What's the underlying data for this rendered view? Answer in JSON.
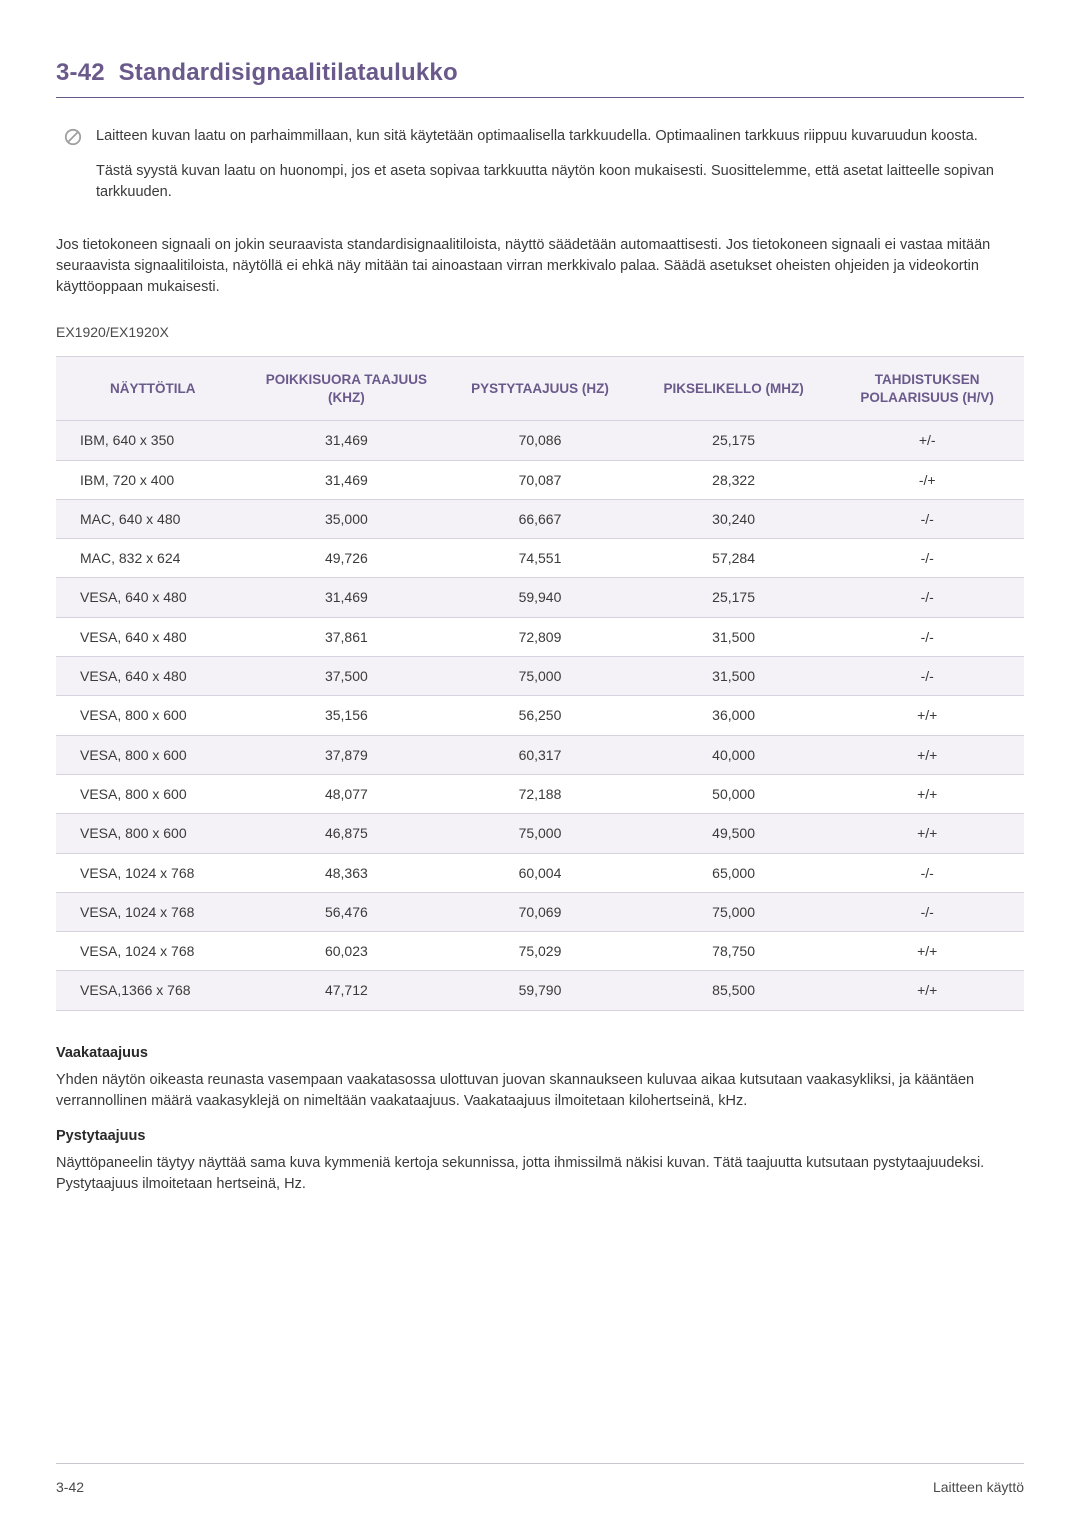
{
  "heading": {
    "section_number": "3-42",
    "title": "Standardisignaalitilataulukko"
  },
  "note_icon": "prohibited-icon",
  "note_paragraphs": [
    "Laitteen kuvan laatu on parhaimmillaan, kun sitä käytetään optimaalisella tarkkuudella. Optimaalinen tarkkuus riippuu kuvaruudun koosta.",
    "Tästä syystä kuvan laatu on huonompi, jos et aseta sopivaa tarkkuutta näytön koon mukaisesti. Suosittelemme, että asetat laitteelle sopivan tarkkuuden."
  ],
  "body_paragraph": "Jos tietokoneen signaali on jokin seuraavista standardisignaalitiloista, näyttö säädetään automaattisesti. Jos tietokoneen signaali ei vastaa mitään seuraavista signaalitiloista, näytöllä ei ehkä näy mitään tai ainoastaan virran merkkivalo palaa. Säädä asetukset oheisten ohjeiden ja videokortin käyttöoppaan mukaisesti.",
  "model_label": "EX1920/EX1920X",
  "table": {
    "columns": [
      "NÄYTTÖTILA",
      "POIKKISUORA TAAJUUS (KHZ)",
      "PYSTYTAAJUUS (HZ)",
      "PIKSELIKELLO (MHZ)",
      "TAHDISTUKSEN POLAARISUUS (H/V)"
    ],
    "rows": [
      [
        "IBM, 640 x 350",
        "31,469",
        "70,086",
        "25,175",
        "+/-"
      ],
      [
        "IBM, 720 x 400",
        "31,469",
        "70,087",
        "28,322",
        "-/+"
      ],
      [
        "MAC, 640 x 480",
        "35,000",
        "66,667",
        "30,240",
        "-/-"
      ],
      [
        "MAC, 832 x 624",
        "49,726",
        "74,551",
        "57,284",
        "-/-"
      ],
      [
        "VESA, 640 x 480",
        "31,469",
        "59,940",
        "25,175",
        "-/-"
      ],
      [
        "VESA, 640 x 480",
        "37,861",
        "72,809",
        "31,500",
        "-/-"
      ],
      [
        "VESA, 640 x 480",
        "37,500",
        "75,000",
        "31,500",
        "-/-"
      ],
      [
        "VESA, 800 x 600",
        "35,156",
        "56,250",
        "36,000",
        "+/+"
      ],
      [
        "VESA, 800 x 600",
        "37,879",
        "60,317",
        "40,000",
        "+/+"
      ],
      [
        "VESA, 800 x 600",
        "48,077",
        "72,188",
        "50,000",
        "+/+"
      ],
      [
        "VESA, 800 x 600",
        "46,875",
        "75,000",
        "49,500",
        "+/+"
      ],
      [
        "VESA, 1024 x 768",
        "48,363",
        "60,004",
        "65,000",
        "-/-"
      ],
      [
        "VESA, 1024 x 768",
        "56,476",
        "70,069",
        "75,000",
        "-/-"
      ],
      [
        "VESA, 1024 x 768",
        "60,023",
        "75,029",
        "78,750",
        "+/+"
      ],
      [
        "VESA,1366 x 768",
        "47,712",
        "59,790",
        "85,500",
        "+/+"
      ]
    ]
  },
  "definitions": [
    {
      "title": "Vaakataajuus",
      "body": "Yhden näytön oikeasta reunasta vasempaan vaakatasossa ulottuvan juovan skannaukseen kuluvaa aikaa kutsutaan vaakasykliksi, ja kääntäen verrannollinen määrä vaakasyklejä on nimeltään vaakataajuus. Vaakataajuus ilmoitetaan kilohertseinä, kHz."
    },
    {
      "title": "Pystytaajuus",
      "body": "Näyttöpaneelin täytyy näyttää sama kuva kymmeniä kertoja sekunnissa, jotta ihmissilmä näkisi kuvan. Tätä taajuutta kutsutaan pystytaajuudeksi. Pystytaajuus ilmoitetaan hertseinä, Hz."
    }
  ],
  "footer": {
    "left": "3-42",
    "right": "Laitteen käyttö"
  }
}
